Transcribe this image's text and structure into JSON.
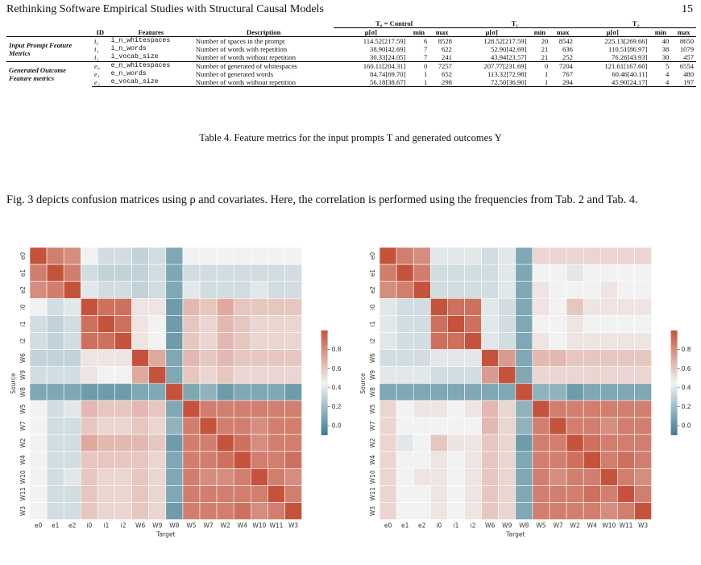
{
  "header": {
    "title": "Rethinking Software Empirical Studies with Structural Causal Models",
    "page": "15"
  },
  "table": {
    "groups": [
      "T₀ = Control",
      "T₁",
      "T₂"
    ],
    "columns": [
      "ID",
      "Features",
      "Description"
    ],
    "stat_columns": [
      "μ[σ]",
      "min",
      "max"
    ],
    "sections": [
      {
        "label": "Input Prompt Feature Metrics",
        "rows": [
          [
            "i₀",
            "i_n_whitespaces",
            "Number of spaces in the prompt",
            "114.52[217.59]",
            6,
            8528,
            "128.52[217.59]",
            20,
            8542,
            "225.13[269.66]",
            40,
            8650
          ],
          [
            "i₁",
            "i_n_words",
            "Number of words with repetition",
            "38.90[42.69]",
            7,
            622,
            "52.90[42.69]",
            21,
            636,
            "110.51[86.97]",
            38,
            1079
          ],
          [
            "i₂",
            "i_vocab_size",
            "Number of words without repetition",
            "30.33[24.05]",
            7,
            241,
            "43.94[23.57]",
            21,
            252,
            "76.26[43.93]",
            30,
            457
          ]
        ]
      },
      {
        "label": "Generated Outcome Feature metrics",
        "rows": [
          [
            "e₀",
            "e_n_whitespaces",
            "Number of generated of whitespaces",
            "160.11[204.31]",
            0,
            7257,
            "207.77[231.69]",
            0,
            7204,
            "121.61[167.60]",
            5,
            6554
          ],
          [
            "e₁",
            "e_n_words",
            "Number of generated words",
            "84.74[69.70]",
            1,
            652,
            "113.32[72.98]",
            1,
            767,
            "60.46[40.11]",
            4,
            480
          ],
          [
            "e₂",
            "e_vocab_size",
            "Number of words without repetition",
            "56.18[38.67]",
            1,
            298,
            "72.50[36.90]",
            1,
            294,
            "45.90[24.17]",
            4,
            197
          ]
        ]
      }
    ],
    "caption": "Table 4. Feature metrics for the input prompts T and generated outcomes Y"
  },
  "paragraph": "Fig. 3 depicts confusion matrices using ρ and covariates. Here, the correlation is performed using the frequencies from Tab. 2 and Tab. 4.",
  "chart_data": [
    {
      "type": "heatmap",
      "xlabel": "Target",
      "ylabel": "Source",
      "x": [
        "e0",
        "e1",
        "e2",
        "i0",
        "i1",
        "i2",
        "W6",
        "W9",
        "W8",
        "W5",
        "W7",
        "W2",
        "W4",
        "W10",
        "W11",
        "W3"
      ],
      "y": [
        "e0",
        "e1",
        "e2",
        "i0",
        "i1",
        "i2",
        "W6",
        "W9",
        "W8",
        "W5",
        "W7",
        "W2",
        "W4",
        "W10",
        "W11",
        "W3"
      ],
      "colormap": [
        "#3d7c91",
        "#f2f2f2",
        "#c5533c"
      ],
      "clim": [
        -0.1,
        1.0
      ],
      "cticks": [
        {
          "value": 0,
          "label": "0.0"
        },
        0.2,
        0.4,
        0.6,
        0.8
      ],
      "values": [
        [
          1,
          0.85,
          0.8,
          0.45,
          0.35,
          0.35,
          0.3,
          0.35,
          0.1,
          0.45,
          0.45,
          0.45,
          0.45,
          0.45,
          0.45,
          0.45
        ],
        [
          0.85,
          1,
          0.85,
          0.35,
          0.3,
          0.3,
          0.3,
          0.35,
          0.1,
          0.35,
          0.35,
          0.35,
          0.35,
          0.35,
          0.35,
          0.35
        ],
        [
          0.8,
          0.85,
          1,
          0.4,
          0.35,
          0.35,
          0.3,
          0.35,
          0.1,
          0.4,
          0.35,
          0.35,
          0.35,
          0.4,
          0.35,
          0.35
        ],
        [
          0.45,
          0.35,
          0.4,
          1,
          0.9,
          0.9,
          0.5,
          0.5,
          0.05,
          0.65,
          0.6,
          0.7,
          0.6,
          0.6,
          0.6,
          0.6
        ],
        [
          0.35,
          0.3,
          0.35,
          0.9,
          1,
          0.9,
          0.5,
          0.45,
          0.05,
          0.6,
          0.55,
          0.65,
          0.6,
          0.55,
          0.55,
          0.55
        ],
        [
          0.35,
          0.3,
          0.35,
          0.9,
          0.9,
          1,
          0.5,
          0.45,
          0.05,
          0.6,
          0.55,
          0.65,
          0.6,
          0.55,
          0.55,
          0.55
        ],
        [
          0.3,
          0.3,
          0.3,
          0.5,
          0.5,
          0.5,
          1,
          0.7,
          0.1,
          0.65,
          0.6,
          0.65,
          0.6,
          0.6,
          0.6,
          0.6
        ],
        [
          0.35,
          0.35,
          0.35,
          0.5,
          0.45,
          0.45,
          0.7,
          1,
          0.1,
          0.6,
          0.55,
          0.6,
          0.55,
          0.55,
          0.55,
          0.55
        ],
        [
          0.1,
          0.1,
          0.1,
          0.05,
          0.05,
          0.05,
          0.1,
          0.1,
          1,
          0.1,
          0.15,
          0.05,
          0.1,
          0.1,
          0.1,
          0.05
        ],
        [
          0.45,
          0.35,
          0.4,
          0.65,
          0.6,
          0.6,
          0.65,
          0.6,
          0.1,
          1,
          0.85,
          0.85,
          0.85,
          0.85,
          0.85,
          0.85
        ],
        [
          0.45,
          0.35,
          0.35,
          0.6,
          0.55,
          0.55,
          0.6,
          0.55,
          0.15,
          0.85,
          1,
          0.85,
          0.85,
          0.8,
          0.85,
          0.85
        ],
        [
          0.45,
          0.35,
          0.35,
          0.7,
          0.65,
          0.65,
          0.65,
          0.6,
          0.05,
          0.85,
          0.85,
          1,
          0.9,
          0.8,
          0.85,
          0.85
        ],
        [
          0.45,
          0.35,
          0.35,
          0.6,
          0.6,
          0.6,
          0.6,
          0.55,
          0.1,
          0.85,
          0.85,
          0.9,
          1,
          0.85,
          0.85,
          0.9
        ],
        [
          0.45,
          0.35,
          0.4,
          0.6,
          0.55,
          0.55,
          0.6,
          0.55,
          0.1,
          0.85,
          0.8,
          0.8,
          0.85,
          1,
          0.85,
          0.8
        ],
        [
          0.45,
          0.35,
          0.35,
          0.6,
          0.55,
          0.55,
          0.6,
          0.55,
          0.1,
          0.85,
          0.85,
          0.85,
          0.85,
          0.85,
          1,
          0.85
        ],
        [
          0.45,
          0.35,
          0.35,
          0.6,
          0.55,
          0.55,
          0.6,
          0.55,
          0.05,
          0.85,
          0.85,
          0.85,
          0.9,
          0.8,
          0.85,
          1
        ]
      ]
    },
    {
      "type": "heatmap",
      "xlabel": "Target",
      "ylabel": "Source",
      "x": [
        "e0",
        "e1",
        "e2",
        "i0",
        "i1",
        "i2",
        "W6",
        "W9",
        "W8",
        "W5",
        "W7",
        "W2",
        "W4",
        "W10",
        "W11",
        "W3"
      ],
      "y": [
        "e0",
        "e1",
        "e2",
        "i0",
        "i1",
        "i2",
        "W6",
        "W9",
        "W8",
        "W5",
        "W7",
        "W2",
        "W4",
        "W10",
        "W11",
        "W3"
      ],
      "colormap": [
        "#3d7c91",
        "#f2f2f2",
        "#c5533c"
      ],
      "clim": [
        -0.1,
        1.0
      ],
      "cticks": [
        {
          "value": 0,
          "label": "0.0"
        },
        0.2,
        0.4,
        0.6,
        0.8
      ],
      "values": [
        [
          1,
          0.85,
          0.8,
          0.4,
          0.4,
          0.4,
          0.35,
          0.4,
          0.1,
          0.55,
          0.55,
          0.55,
          0.55,
          0.55,
          0.55,
          0.55
        ],
        [
          0.85,
          1,
          0.85,
          0.35,
          0.35,
          0.35,
          0.35,
          0.4,
          0.1,
          0.45,
          0.45,
          0.4,
          0.45,
          0.45,
          0.45,
          0.45
        ],
        [
          0.8,
          0.85,
          1,
          0.35,
          0.35,
          0.35,
          0.35,
          0.4,
          0.1,
          0.5,
          0.45,
          0.45,
          0.45,
          0.5,
          0.45,
          0.45
        ],
        [
          0.4,
          0.35,
          0.35,
          1,
          0.9,
          0.9,
          0.4,
          0.35,
          0.1,
          0.5,
          0.45,
          0.6,
          0.5,
          0.5,
          0.5,
          0.5
        ],
        [
          0.4,
          0.35,
          0.35,
          0.9,
          1,
          0.9,
          0.4,
          0.35,
          0.1,
          0.45,
          0.45,
          0.5,
          0.45,
          0.45,
          0.45,
          0.45
        ],
        [
          0.4,
          0.35,
          0.35,
          0.9,
          0.9,
          1,
          0.4,
          0.35,
          0.1,
          0.5,
          0.45,
          0.5,
          0.5,
          0.5,
          0.5,
          0.5
        ],
        [
          0.35,
          0.35,
          0.35,
          0.4,
          0.4,
          0.4,
          1,
          0.75,
          0.1,
          0.65,
          0.65,
          0.6,
          0.6,
          0.6,
          0.6,
          0.6
        ],
        [
          0.4,
          0.4,
          0.4,
          0.35,
          0.35,
          0.35,
          0.75,
          1,
          0.1,
          0.55,
          0.55,
          0.55,
          0.55,
          0.55,
          0.55,
          0.55
        ],
        [
          0.1,
          0.1,
          0.1,
          0.1,
          0.1,
          0.1,
          0.1,
          0.1,
          1,
          0.15,
          0.15,
          0.05,
          0.1,
          0.1,
          0.1,
          0.1
        ],
        [
          0.55,
          0.45,
          0.5,
          0.5,
          0.45,
          0.5,
          0.65,
          0.55,
          0.15,
          1,
          0.85,
          0.85,
          0.85,
          0.85,
          0.85,
          0.85
        ],
        [
          0.55,
          0.45,
          0.45,
          0.45,
          0.45,
          0.45,
          0.65,
          0.55,
          0.15,
          0.85,
          1,
          0.85,
          0.85,
          0.8,
          0.85,
          0.85
        ],
        [
          0.55,
          0.4,
          0.45,
          0.6,
          0.5,
          0.5,
          0.6,
          0.55,
          0.05,
          0.85,
          0.85,
          1,
          0.9,
          0.85,
          0.85,
          0.85
        ],
        [
          0.55,
          0.45,
          0.45,
          0.5,
          0.45,
          0.5,
          0.6,
          0.55,
          0.1,
          0.85,
          0.85,
          0.9,
          1,
          0.85,
          0.9,
          0.85
        ],
        [
          0.55,
          0.45,
          0.5,
          0.5,
          0.45,
          0.5,
          0.6,
          0.55,
          0.1,
          0.85,
          0.8,
          0.85,
          0.85,
          1,
          0.85,
          0.8
        ],
        [
          0.55,
          0.45,
          0.45,
          0.5,
          0.45,
          0.5,
          0.6,
          0.55,
          0.1,
          0.85,
          0.85,
          0.85,
          0.9,
          0.85,
          1,
          0.85
        ],
        [
          0.55,
          0.45,
          0.45,
          0.5,
          0.45,
          0.5,
          0.6,
          0.55,
          0.1,
          0.85,
          0.85,
          0.85,
          0.85,
          0.8,
          0.85,
          1
        ]
      ]
    }
  ]
}
